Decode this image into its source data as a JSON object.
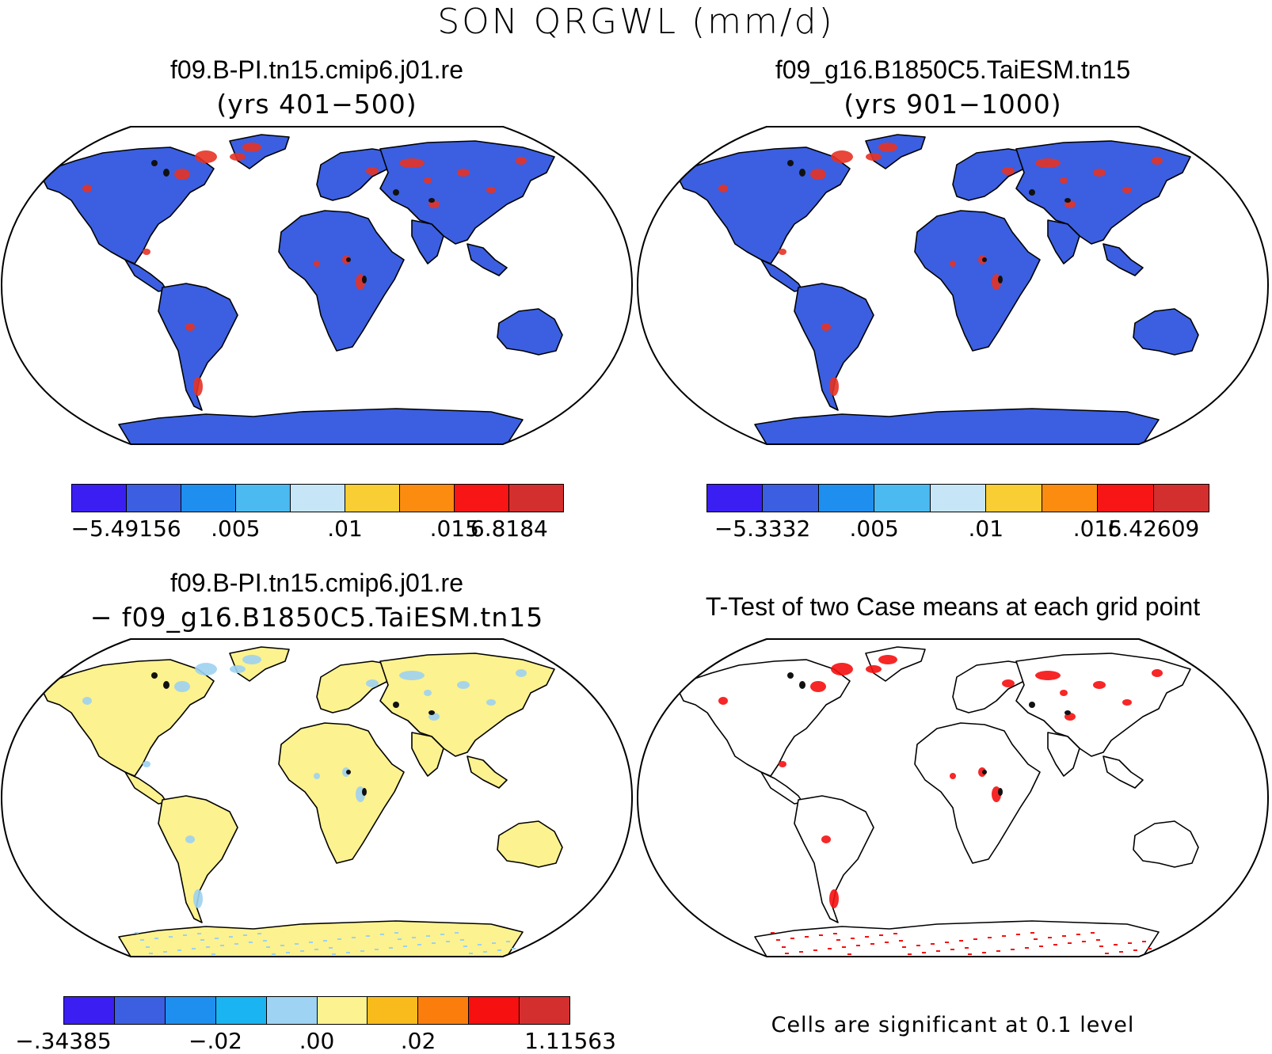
{
  "title": "SON QRGWL (mm/d)",
  "panels": [
    {
      "title": "f09.B-PI.tn15.cmip6.j01.re",
      "subtitle": "(yrs 401−500)",
      "land_color": "#3b5fe0",
      "hotspot_color": "#e53325",
      "colorbar": {
        "colors": [
          "#3b1ff2",
          "#3b5fe0",
          "#1f8fef",
          "#4bbaf0",
          "#c6e6f8",
          "#f9cd34",
          "#fc8c0f",
          "#f71515",
          "#d32f2f"
        ],
        "labels": [
          "−5.49156",
          ".005",
          ".01",
          ".015",
          "6.8184"
        ]
      }
    },
    {
      "title": "f09_g16.B1850C5.TaiESM.tn15",
      "subtitle": "(yrs 901−1000)",
      "land_color": "#3b5fe0",
      "hotspot_color": "#e53325",
      "colorbar": {
        "colors": [
          "#3b1ff2",
          "#3b5fe0",
          "#1f8fef",
          "#4bbaf0",
          "#c6e6f8",
          "#f9cd34",
          "#fc8c0f",
          "#f71515",
          "#d32f2f"
        ],
        "labels": [
          "−5.3332",
          ".005",
          ".01",
          ".015",
          "6.42609"
        ]
      }
    },
    {
      "title": "f09.B-PI.tn15.cmip6.j01.re",
      "subtitle": "− f09_g16.B1850C5.TaiESM.tn15",
      "land_color": "#fcf28f",
      "hotspot_color": "#9dd1f1",
      "colorbar": {
        "colors": [
          "#3b1ff2",
          "#3b5fe0",
          "#1f8fef",
          "#1bb4f2",
          "#9fd3f3",
          "#fcf28f",
          "#f9bb1c",
          "#fb7d0c",
          "#f61010",
          "#d32f2f"
        ],
        "labels": [
          "−.34385",
          "−.02",
          ".00",
          ".02",
          "1.11563"
        ]
      }
    },
    {
      "title": "T-Test of two Case means at each grid point",
      "land_color": "#ffffff",
      "hotspot_color": "#f50f0f",
      "note": "Cells are significant at 0.1 level"
    }
  ]
}
